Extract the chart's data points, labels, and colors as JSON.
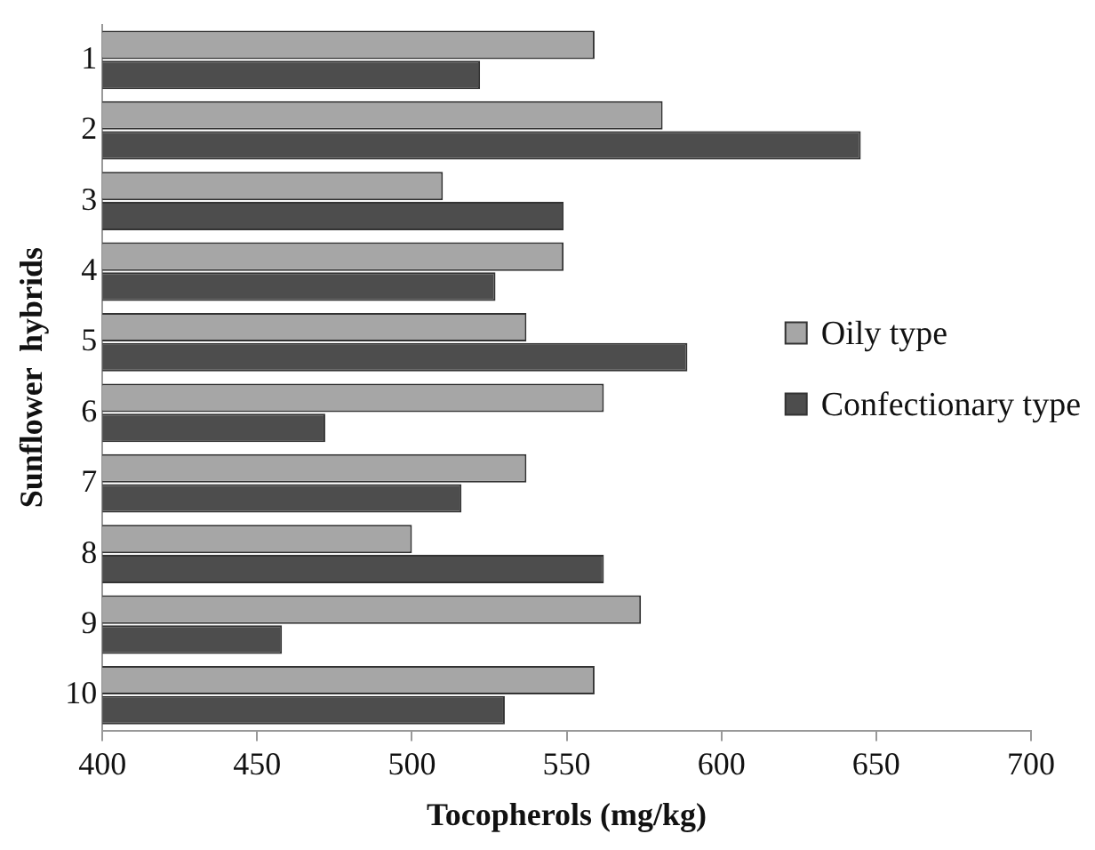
{
  "chart_data": {
    "type": "bar",
    "orientation": "horizontal",
    "xlabel": "Tocopherols (mg/kg)",
    "ylabel": "Sunflower  hybrids",
    "categories": [
      "1",
      "2",
      "3",
      "4",
      "5",
      "6",
      "7",
      "8",
      "9",
      "10"
    ],
    "series": [
      {
        "name": "Oily type",
        "color": "#a6a6a6",
        "values": [
          559,
          581,
          510,
          549,
          537,
          562,
          537,
          500,
          574,
          559
        ]
      },
      {
        "name": "Confectionary type",
        "color": "#4d4d4d",
        "values": [
          522,
          645,
          549,
          527,
          589,
          472,
          516,
          562,
          458,
          530
        ]
      }
    ],
    "xlim": [
      400,
      700
    ],
    "xticks": [
      400,
      450,
      500,
      550,
      600,
      650,
      700
    ],
    "grid": false,
    "legend": "right"
  }
}
